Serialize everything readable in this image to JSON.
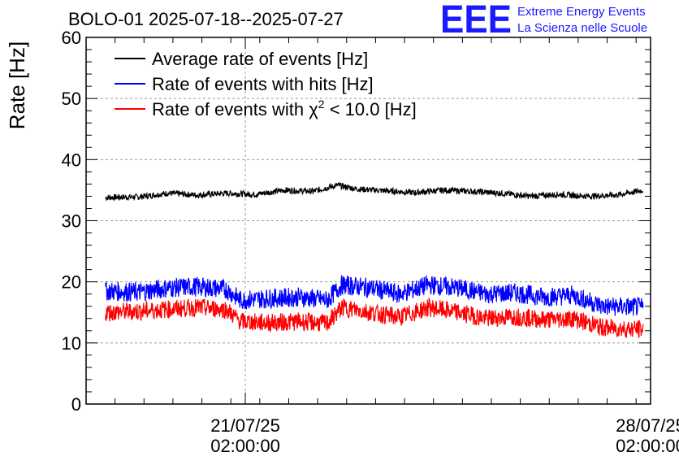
{
  "chart_data": {
    "type": "line",
    "title": "BOLO-01 2025-07-18--2025-07-27",
    "ylabel": "Rate [Hz]",
    "xlabel": "",
    "ylim": [
      0,
      60
    ],
    "yticks": [
      0,
      10,
      20,
      30,
      40,
      50,
      60
    ],
    "xlim": [
      "2025-07-18 08:00",
      "2025-07-28 02:00"
    ],
    "xticks": [
      {
        "time": "2025-07-21 02:00",
        "label_date": "21/07/25",
        "label_time": "02:00:00"
      },
      {
        "time": "2025-07-28 02:00",
        "label_date": "28/07/25",
        "label_time": "02:00:00"
      }
    ],
    "grid": true,
    "legend_position": "top-left",
    "series": [
      {
        "name": "Average rate of events [Hz]",
        "color": "#000000",
        "x": [
          "2025-07-18 16:00",
          "2025-07-19 06:00",
          "2025-07-19 18:00",
          "2025-07-20 06:00",
          "2025-07-20 18:00",
          "2025-07-21 06:00",
          "2025-07-21 18:00",
          "2025-07-22 06:00",
          "2025-07-22 16:00",
          "2025-07-23 00:00",
          "2025-07-23 12:00",
          "2025-07-24 00:00",
          "2025-07-24 12:00",
          "2025-07-25 00:00",
          "2025-07-25 12:00",
          "2025-07-26 00:00",
          "2025-07-26 12:00",
          "2025-07-27 00:00",
          "2025-07-27 12:00",
          "2025-07-27 23:00"
        ],
        "y": [
          33.8,
          33.9,
          34.5,
          34.2,
          34.5,
          34.3,
          35.0,
          34.8,
          35.8,
          35.2,
          34.9,
          34.6,
          35.0,
          34.8,
          34.5,
          34.0,
          34.3,
          34.0,
          34.2,
          35.0
        ],
        "band": 0.5
      },
      {
        "name": "Rate of events with hits [Hz]",
        "color": "#0000ff",
        "x": [
          "2025-07-18 16:00",
          "2025-07-19 06:00",
          "2025-07-19 18:00",
          "2025-07-20 06:00",
          "2025-07-20 18:00",
          "2025-07-21 00:00",
          "2025-07-21 12:00",
          "2025-07-22 00:00",
          "2025-07-22 12:00",
          "2025-07-22 18:00",
          "2025-07-23 06:00",
          "2025-07-23 18:00",
          "2025-07-24 06:00",
          "2025-07-24 18:00",
          "2025-07-25 06:00",
          "2025-07-25 18:00",
          "2025-07-26 06:00",
          "2025-07-26 18:00",
          "2025-07-27 06:00",
          "2025-07-27 23:00"
        ],
        "y": [
          18.5,
          18.3,
          19.0,
          19.2,
          18.8,
          17.0,
          17.3,
          17.5,
          17.0,
          19.5,
          19.0,
          18.0,
          19.5,
          19.0,
          18.0,
          18.2,
          17.5,
          17.8,
          16.0,
          15.8
        ],
        "band": 1.6
      },
      {
        "name": "Rate of events with χ² < 10.0 [Hz]",
        "color": "#ff0000",
        "x": [
          "2025-07-18 16:00",
          "2025-07-19 06:00",
          "2025-07-19 18:00",
          "2025-07-20 06:00",
          "2025-07-20 18:00",
          "2025-07-21 00:00",
          "2025-07-21 12:00",
          "2025-07-22 00:00",
          "2025-07-22 12:00",
          "2025-07-22 18:00",
          "2025-07-23 06:00",
          "2025-07-23 18:00",
          "2025-07-24 06:00",
          "2025-07-24 18:00",
          "2025-07-25 06:00",
          "2025-07-25 18:00",
          "2025-07-26 06:00",
          "2025-07-26 18:00",
          "2025-07-27 06:00",
          "2025-07-27 23:00"
        ],
        "y": [
          15.0,
          15.2,
          15.5,
          15.8,
          15.5,
          13.5,
          13.3,
          13.5,
          13.2,
          15.8,
          15.0,
          14.2,
          15.8,
          15.0,
          14.0,
          14.3,
          13.8,
          14.0,
          12.5,
          12.2
        ],
        "band": 1.5
      }
    ],
    "legend_math": {
      "base": "Rate of events with ",
      "chi": "χ",
      "sup": "2",
      "rest": " < 10.0 [Hz]"
    }
  },
  "logo": {
    "text": "EEE",
    "line1": "Extreme Energy Events",
    "line2": "La Scienza nelle Scuole"
  }
}
